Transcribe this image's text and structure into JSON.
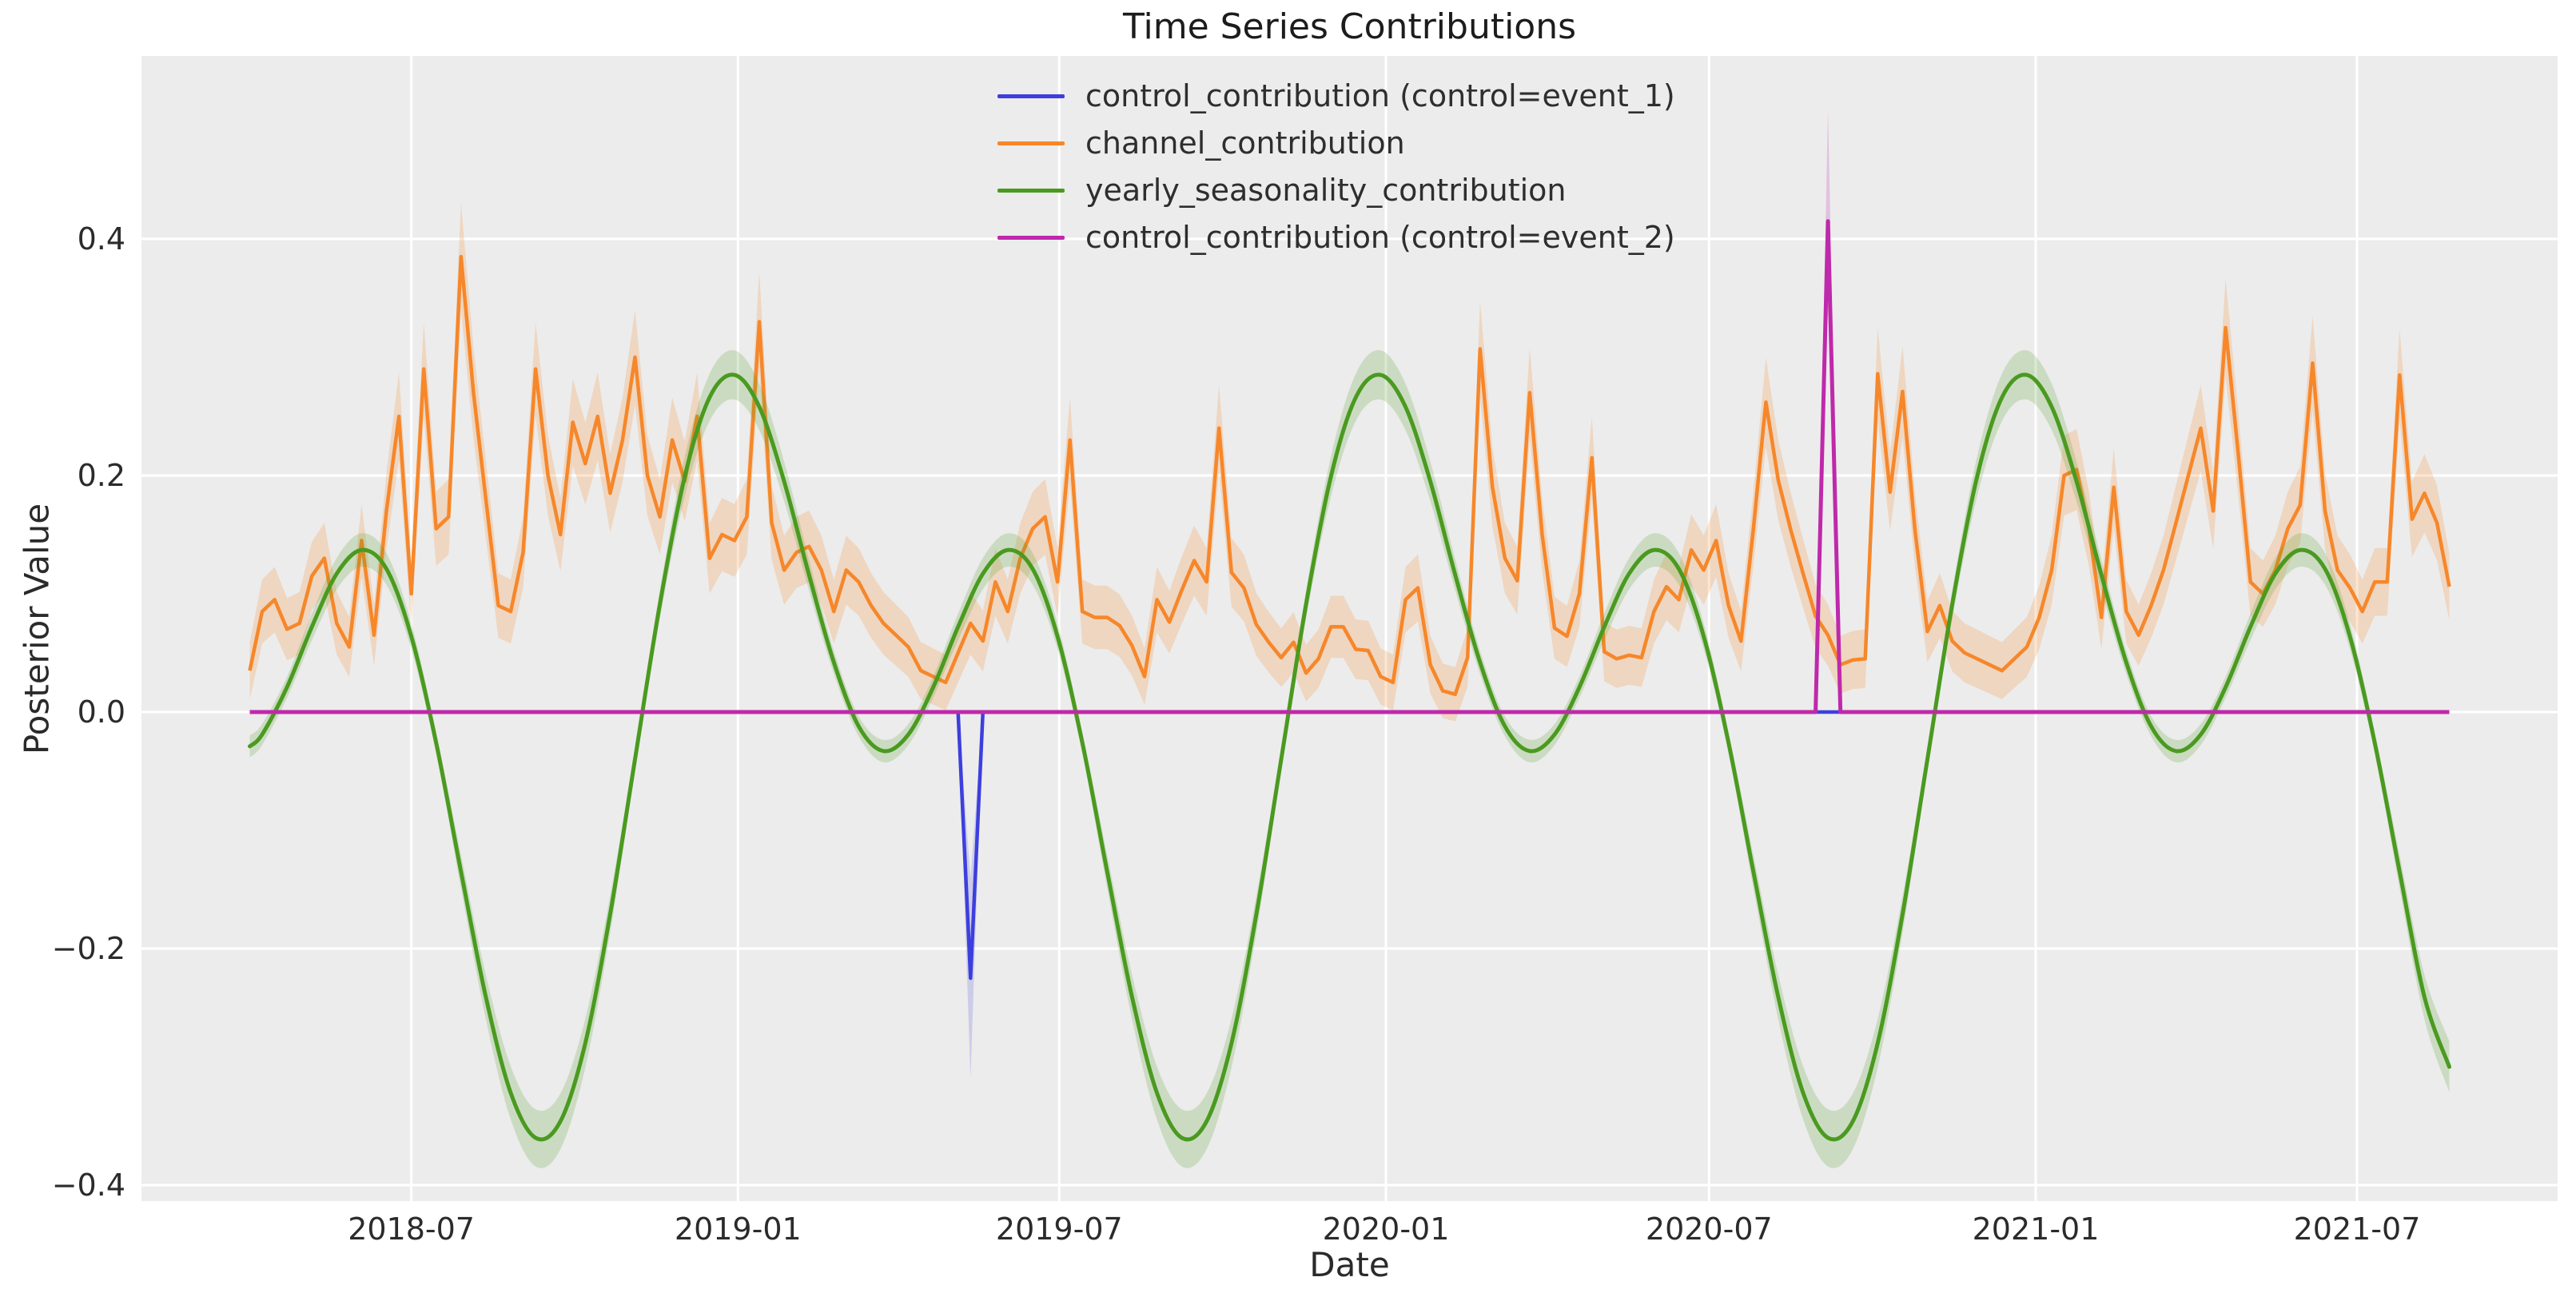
{
  "figure": {
    "title": "Time Series Contributions",
    "xlabel": "Date",
    "ylabel": "Posterior Value"
  },
  "colors": {
    "blue": "#3d3fdd",
    "orange": "#f6872a",
    "green": "#4a9a20",
    "magenta": "#bf29ab",
    "plot_bg": "#ececec",
    "grid": "#ffffff",
    "tick_text": "#2b2b2b",
    "title_text": "#1c1c1c"
  },
  "legend": {
    "items": [
      {
        "label": "control_contribution (control=event_1)",
        "color": "#3d3fdd"
      },
      {
        "label": "channel_contribution",
        "color": "#f6872a"
      },
      {
        "label": "yearly_seasonality_contribution",
        "color": "#4a9a20"
      },
      {
        "label": "control_contribution (control=event_2)",
        "color": "#bf29ab"
      }
    ]
  },
  "chart_data": {
    "type": "line",
    "title": "Time Series Contributions",
    "xlabel": "Date",
    "ylabel": "Posterior Value",
    "grid": true,
    "legend_position": "upper center",
    "x_axis": {
      "range": [
        "2018-01-30",
        "2021-10-22"
      ],
      "tick_dates": [
        "2018-07-01",
        "2019-01-01",
        "2019-07-01",
        "2020-01-01",
        "2020-07-01",
        "2021-01-01",
        "2021-07-01"
      ],
      "tick_labels": [
        "2018-07",
        "2019-01",
        "2019-07",
        "2020-01",
        "2020-07",
        "2021-01",
        "2021-07"
      ]
    },
    "y_axis": {
      "range": [
        -0.4135,
        0.5547
      ],
      "ticks": [
        0.4,
        0.2,
        0.0,
        -0.2,
        -0.4
      ],
      "tick_labels": [
        "0.4",
        "0.2",
        "0.0",
        "−0.2",
        "−0.4"
      ]
    },
    "series": [
      {
        "name": "control_contribution (control=event_1)",
        "kind": "event_line",
        "color": "#3d3fdd",
        "start_date": "2018-04-01",
        "end_date": "2021-08-22",
        "baseline": 0.0,
        "event": {
          "date": "2019-05-12",
          "value": -0.225,
          "band_low": -0.31,
          "band_high": -0.14,
          "ramp_days": 7
        }
      },
      {
        "name": "channel_contribution",
        "kind": "noisy_line",
        "color": "#f6872a",
        "start_date": "2018-04-01",
        "step_days": 7,
        "band": {
          "base": 0.022,
          "prop": 0.06
        },
        "values": [
          0.035,
          0.085,
          0.095,
          0.07,
          0.075,
          0.115,
          0.13,
          0.075,
          0.055,
          0.145,
          0.065,
          0.17,
          0.25,
          0.1,
          0.29,
          0.155,
          0.165,
          0.385,
          0.27,
          0.18,
          0.09,
          0.085,
          0.135,
          0.29,
          0.2,
          0.15,
          0.245,
          0.21,
          0.25,
          0.185,
          0.23,
          0.3,
          0.2,
          0.165,
          0.23,
          0.195,
          0.25,
          0.13,
          0.15,
          0.145,
          0.165,
          0.33,
          0.16,
          0.12,
          0.135,
          0.14,
          0.12,
          0.085,
          0.12,
          0.11,
          0.09,
          0.075,
          0.065,
          0.055,
          0.035,
          0.03,
          0.025,
          0.05,
          0.075,
          0.06,
          0.11,
          0.085,
          0.13,
          0.155,
          0.165,
          0.11,
          0.23,
          0.085,
          0.08,
          0.08,
          0.073,
          0.056,
          0.03,
          0.095,
          0.076,
          0.103,
          0.128,
          0.11,
          0.24,
          0.118,
          0.105,
          0.074,
          0.059,
          0.046,
          0.059,
          0.033,
          0.045,
          0.072,
          0.072,
          0.053,
          0.052,
          0.03,
          0.025,
          0.095,
          0.105,
          0.04,
          0.018,
          0.015,
          0.046,
          0.307,
          0.19,
          0.13,
          0.111,
          0.27,
          0.15,
          0.071,
          0.064,
          0.1,
          0.215,
          0.051,
          0.045,
          0.048,
          0.046,
          0.085,
          0.106,
          0.095,
          0.137,
          0.12,
          0.145,
          0.09,
          0.06,
          0.155,
          0.262,
          0.196,
          0.154,
          0.117,
          0.081,
          0.065,
          0.04,
          0.044,
          0.045,
          0.286,
          0.186,
          0.271,
          0.154,
          0.068,
          0.09,
          0.06,
          0.05,
          0.045,
          0.04,
          0.035,
          0.045,
          0.055,
          0.08,
          0.12,
          0.2,
          0.205,
          0.155,
          0.08,
          0.19,
          0.085,
          0.065,
          0.09,
          0.12,
          0.16,
          0.2,
          0.24,
          0.17,
          0.325,
          0.22,
          0.11,
          0.1,
          0.12,
          0.155,
          0.175,
          0.295,
          0.17,
          0.12,
          0.105,
          0.085,
          0.11,
          0.11,
          0.285,
          0.163,
          0.185,
          0.16,
          0.106
        ]
      },
      {
        "name": "yearly_seasonality_contribution",
        "kind": "smooth_line",
        "color": "#4a9a20",
        "band": {
          "base": 0.008,
          "prop": 0.045
        },
        "lead_point": {
          "date": "2018-04-01",
          "value": -0.029
        },
        "knot_start_date": "2018-04-08",
        "knot_step_days": 14,
        "end_point": {
          "date": "2021-08-22",
          "value": -0.3
        },
        "knot_values": [
          -0.019,
          0.021,
          0.072,
          0.117,
          0.137,
          0.121,
          0.064,
          -0.026,
          -0.135,
          -0.241,
          -0.322,
          -0.36,
          -0.346,
          -0.28,
          -0.171,
          -0.04,
          0.091,
          0.199,
          0.266,
          0.285,
          0.258,
          0.195,
          0.116,
          0.042,
          -0.012,
          -0.033,
          -0.019,
          0.021,
          0.072,
          0.117,
          0.137,
          0.121,
          0.064,
          -0.026,
          -0.135,
          -0.241,
          -0.322,
          -0.36,
          -0.346,
          -0.28,
          -0.171,
          -0.04,
          0.091,
          0.199,
          0.266,
          0.285,
          0.258,
          0.195,
          0.116,
          0.042,
          -0.012,
          -0.033,
          -0.019,
          0.021,
          0.072,
          0.117,
          0.137,
          0.121,
          0.064,
          -0.026,
          -0.135,
          -0.241,
          -0.322,
          -0.36,
          -0.346,
          -0.28,
          -0.171,
          -0.04,
          0.091,
          0.199,
          0.266,
          0.285,
          0.258,
          0.195,
          0.116,
          0.042,
          -0.012,
          -0.033,
          -0.019,
          0.021,
          0.072,
          0.117,
          0.137,
          0.121,
          0.064,
          -0.026,
          -0.135,
          -0.241
        ]
      },
      {
        "name": "control_contribution (control=event_2)",
        "kind": "event_line",
        "color": "#bf29ab",
        "start_date": "2018-04-01",
        "end_date": "2021-08-22",
        "baseline": 0.0,
        "event": {
          "date": "2020-09-06",
          "value": 0.415,
          "band_low": 0.34,
          "band_high": 0.51,
          "ramp_days": 7
        }
      }
    ]
  }
}
